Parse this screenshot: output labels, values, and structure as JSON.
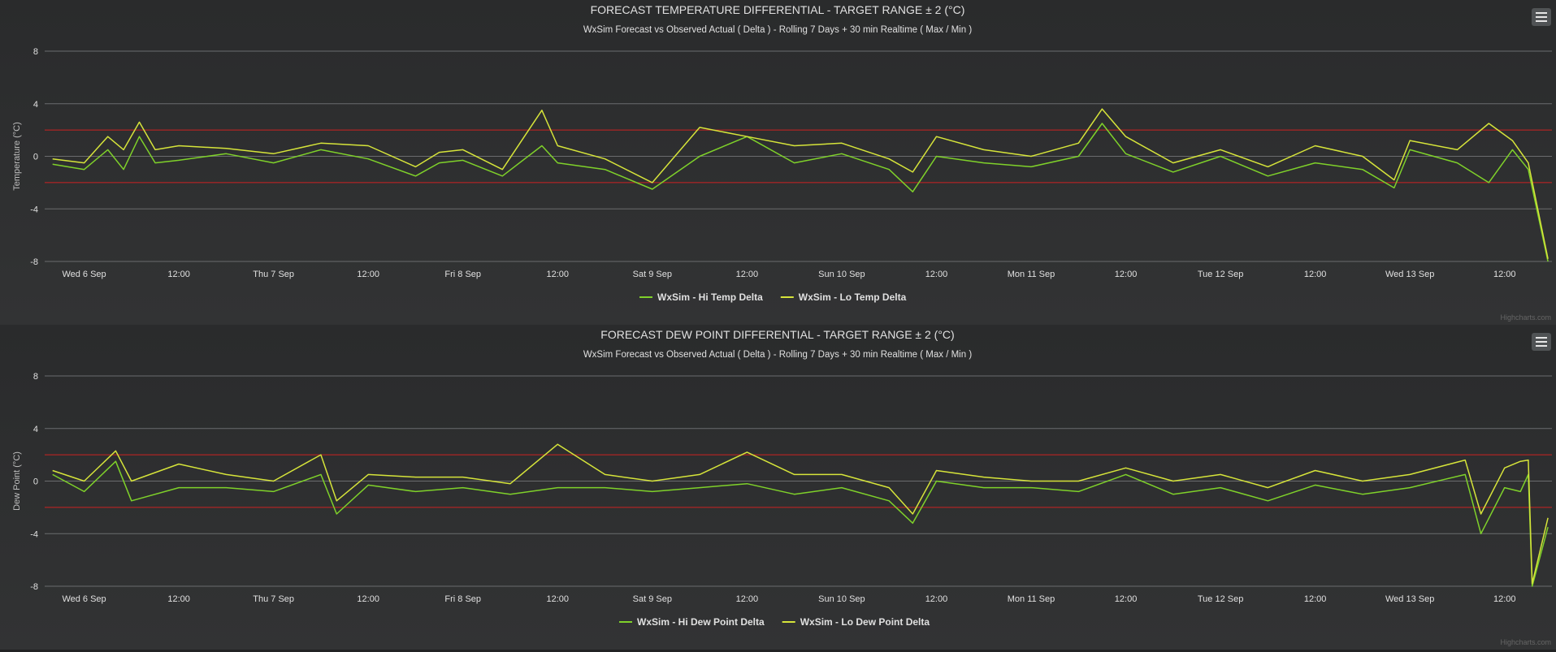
{
  "credit": "Highcharts.com",
  "colors": {
    "hi": "#7fd12a",
    "lo": "#d6e43a",
    "target": "#cc2222",
    "grid": "#6a6c6e",
    "text": "#e0e0e0"
  },
  "chart_data": [
    {
      "type": "line",
      "title": "FORECAST TEMPERATURE DIFFERENTIAL - TARGET RANGE ± 2 (°C)",
      "subtitle": "WxSim Forecast vs Observed Actual ( Delta ) - Rolling 7 Days + 30 min Realtime ( Max / Min )",
      "ylabel": "Temperature (°C)",
      "xlabel": "",
      "ylim": [
        -8,
        8
      ],
      "yticks": [
        "8",
        "4",
        "0",
        "-4",
        "-8"
      ],
      "xlim": [
        "2017-09-05T19:00",
        "2017-09-13T18:00"
      ],
      "xticks": [
        {
          "t": "2017-09-06T00:00",
          "label": "Wed 6 Sep"
        },
        {
          "t": "2017-09-06T12:00",
          "label": "12:00"
        },
        {
          "t": "2017-09-07T00:00",
          "label": "Thu 7 Sep"
        },
        {
          "t": "2017-09-07T12:00",
          "label": "12:00"
        },
        {
          "t": "2017-09-08T00:00",
          "label": "Fri 8 Sep"
        },
        {
          "t": "2017-09-08T12:00",
          "label": "12:00"
        },
        {
          "t": "2017-09-09T00:00",
          "label": "Sat 9 Sep"
        },
        {
          "t": "2017-09-09T12:00",
          "label": "12:00"
        },
        {
          "t": "2017-09-10T00:00",
          "label": "Sun 10 Sep"
        },
        {
          "t": "2017-09-10T12:00",
          "label": "12:00"
        },
        {
          "t": "2017-09-11T00:00",
          "label": "Mon 11 Sep"
        },
        {
          "t": "2017-09-11T12:00",
          "label": "12:00"
        },
        {
          "t": "2017-09-12T00:00",
          "label": "Tue 12 Sep"
        },
        {
          "t": "2017-09-12T12:00",
          "label": "12:00"
        },
        {
          "t": "2017-09-13T00:00",
          "label": "Wed 13 Sep"
        },
        {
          "t": "2017-09-13T12:00",
          "label": "12:00"
        }
      ],
      "target_range": [
        -2,
        2
      ],
      "legend": "bottom-center",
      "grid": true,
      "series": [
        {
          "name": "WxSim - Hi Temp Delta",
          "x": [
            "2017-09-05T20:00",
            "2017-09-06T00:00",
            "2017-09-06T03:00",
            "2017-09-06T05:00",
            "2017-09-06T07:00",
            "2017-09-06T09:00",
            "2017-09-06T12:00",
            "2017-09-06T18:00",
            "2017-09-07T00:00",
            "2017-09-07T06:00",
            "2017-09-07T12:00",
            "2017-09-07T18:00",
            "2017-09-07T21:00",
            "2017-09-08T00:00",
            "2017-09-08T05:00",
            "2017-09-08T10:00",
            "2017-09-08T12:00",
            "2017-09-08T18:00",
            "2017-09-09T00:00",
            "2017-09-09T06:00",
            "2017-09-09T12:00",
            "2017-09-09T18:00",
            "2017-09-10T00:00",
            "2017-09-10T06:00",
            "2017-09-10T09:00",
            "2017-09-10T12:00",
            "2017-09-10T18:00",
            "2017-09-11T00:00",
            "2017-09-11T06:00",
            "2017-09-11T09:00",
            "2017-09-11T12:00",
            "2017-09-11T18:00",
            "2017-09-12T00:00",
            "2017-09-12T06:00",
            "2017-09-12T12:00",
            "2017-09-12T18:00",
            "2017-09-12T22:00",
            "2017-09-13T00:00",
            "2017-09-13T06:00",
            "2017-09-13T10:00",
            "2017-09-13T13:00",
            "2017-09-13T15:00",
            "2017-09-13T17:30"
          ],
          "values": [
            -0.6,
            -1.0,
            0.5,
            -1.0,
            1.5,
            -0.5,
            -0.3,
            0.2,
            -0.5,
            0.5,
            -0.2,
            -1.5,
            -0.5,
            -0.3,
            -1.5,
            0.8,
            -0.5,
            -1.0,
            -2.5,
            0.0,
            1.5,
            -0.5,
            0.2,
            -1.0,
            -2.7,
            0.0,
            -0.5,
            -0.8,
            0.0,
            2.5,
            0.2,
            -1.2,
            0.0,
            -1.5,
            -0.5,
            -1.0,
            -2.4,
            0.5,
            -0.5,
            -2.0,
            0.5,
            -1.0,
            -8.0
          ]
        },
        {
          "name": "WxSim - Lo Temp Delta",
          "x": [
            "2017-09-05T20:00",
            "2017-09-06T00:00",
            "2017-09-06T03:00",
            "2017-09-06T05:00",
            "2017-09-06T07:00",
            "2017-09-06T09:00",
            "2017-09-06T12:00",
            "2017-09-06T18:00",
            "2017-09-07T00:00",
            "2017-09-07T06:00",
            "2017-09-07T12:00",
            "2017-09-07T18:00",
            "2017-09-07T21:00",
            "2017-09-08T00:00",
            "2017-09-08T05:00",
            "2017-09-08T10:00",
            "2017-09-08T12:00",
            "2017-09-08T18:00",
            "2017-09-09T00:00",
            "2017-09-09T06:00",
            "2017-09-09T12:00",
            "2017-09-09T18:00",
            "2017-09-10T00:00",
            "2017-09-10T06:00",
            "2017-09-10T09:00",
            "2017-09-10T12:00",
            "2017-09-10T18:00",
            "2017-09-11T00:00",
            "2017-09-11T06:00",
            "2017-09-11T09:00",
            "2017-09-11T12:00",
            "2017-09-11T18:00",
            "2017-09-12T00:00",
            "2017-09-12T06:00",
            "2017-09-12T12:00",
            "2017-09-12T18:00",
            "2017-09-12T22:00",
            "2017-09-13T00:00",
            "2017-09-13T06:00",
            "2017-09-13T10:00",
            "2017-09-13T13:00",
            "2017-09-13T15:00",
            "2017-09-13T17:30"
          ],
          "values": [
            -0.2,
            -0.5,
            1.5,
            0.5,
            2.6,
            0.5,
            0.8,
            0.6,
            0.2,
            1.0,
            0.8,
            -0.8,
            0.3,
            0.5,
            -1.0,
            3.5,
            0.8,
            -0.2,
            -2.0,
            2.2,
            1.5,
            0.8,
            1.0,
            -0.2,
            -1.2,
            1.5,
            0.5,
            0.0,
            1.0,
            3.6,
            1.5,
            -0.5,
            0.5,
            -0.8,
            0.8,
            0.0,
            -1.8,
            1.2,
            0.5,
            2.5,
            1.2,
            -0.5,
            -7.8
          ]
        }
      ]
    },
    {
      "type": "line",
      "title": "FORECAST DEW POINT DIFFERENTIAL - TARGET RANGE ± 2 (°C)",
      "subtitle": "WxSim Forecast vs Observed Actual ( Delta ) - Rolling 7 Days + 30 min Realtime ( Max / Min )",
      "ylabel": "Dew Point (°C)",
      "xlabel": "",
      "ylim": [
        -8,
        8
      ],
      "yticks": [
        "8",
        "4",
        "0",
        "-4",
        "-8"
      ],
      "xlim": [
        "2017-09-05T19:00",
        "2017-09-13T18:00"
      ],
      "xticks": [
        {
          "t": "2017-09-06T00:00",
          "label": "Wed 6 Sep"
        },
        {
          "t": "2017-09-06T12:00",
          "label": "12:00"
        },
        {
          "t": "2017-09-07T00:00",
          "label": "Thu 7 Sep"
        },
        {
          "t": "2017-09-07T12:00",
          "label": "12:00"
        },
        {
          "t": "2017-09-08T00:00",
          "label": "Fri 8 Sep"
        },
        {
          "t": "2017-09-08T12:00",
          "label": "12:00"
        },
        {
          "t": "2017-09-09T00:00",
          "label": "Sat 9 Sep"
        },
        {
          "t": "2017-09-09T12:00",
          "label": "12:00"
        },
        {
          "t": "2017-09-10T00:00",
          "label": "Sun 10 Sep"
        },
        {
          "t": "2017-09-10T12:00",
          "label": "12:00"
        },
        {
          "t": "2017-09-11T00:00",
          "label": "Mon 11 Sep"
        },
        {
          "t": "2017-09-11T12:00",
          "label": "12:00"
        },
        {
          "t": "2017-09-12T00:00",
          "label": "Tue 12 Sep"
        },
        {
          "t": "2017-09-12T12:00",
          "label": "12:00"
        },
        {
          "t": "2017-09-13T00:00",
          "label": "Wed 13 Sep"
        },
        {
          "t": "2017-09-13T12:00",
          "label": "12:00"
        }
      ],
      "target_range": [
        -2,
        2
      ],
      "legend": "bottom-center",
      "grid": true,
      "series": [
        {
          "name": "WxSim - Hi Dew Point Delta",
          "x": [
            "2017-09-05T20:00",
            "2017-09-06T00:00",
            "2017-09-06T04:00",
            "2017-09-06T06:00",
            "2017-09-06T12:00",
            "2017-09-06T18:00",
            "2017-09-07T00:00",
            "2017-09-07T06:00",
            "2017-09-07T08:00",
            "2017-09-07T12:00",
            "2017-09-07T18:00",
            "2017-09-08T00:00",
            "2017-09-08T06:00",
            "2017-09-08T12:00",
            "2017-09-08T18:00",
            "2017-09-09T00:00",
            "2017-09-09T06:00",
            "2017-09-09T12:00",
            "2017-09-09T18:00",
            "2017-09-10T00:00",
            "2017-09-10T06:00",
            "2017-09-10T09:00",
            "2017-09-10T12:00",
            "2017-09-10T18:00",
            "2017-09-11T00:00",
            "2017-09-11T06:00",
            "2017-09-11T12:00",
            "2017-09-11T18:00",
            "2017-09-12T00:00",
            "2017-09-12T06:00",
            "2017-09-12T12:00",
            "2017-09-12T18:00",
            "2017-09-13T00:00",
            "2017-09-13T07:00",
            "2017-09-13T09:00",
            "2017-09-13T12:00",
            "2017-09-13T14:00",
            "2017-09-13T15:00",
            "2017-09-13T15:30",
            "2017-09-13T17:30"
          ],
          "values": [
            0.5,
            -0.8,
            1.5,
            -1.5,
            -0.5,
            -0.5,
            -0.8,
            0.5,
            -2.5,
            -0.3,
            -0.8,
            -0.5,
            -1.0,
            -0.5,
            -0.5,
            -0.8,
            -0.5,
            -0.2,
            -1.0,
            -0.5,
            -1.5,
            -3.2,
            0.0,
            -0.5,
            -0.5,
            -0.8,
            0.5,
            -1.0,
            -0.5,
            -1.5,
            -0.3,
            -1.0,
            -0.5,
            0.5,
            -4.0,
            -0.5,
            -0.8,
            0.5,
            -8.0,
            -3.5
          ]
        },
        {
          "name": "WxSim - Lo Dew Point Delta",
          "x": [
            "2017-09-05T20:00",
            "2017-09-06T00:00",
            "2017-09-06T04:00",
            "2017-09-06T06:00",
            "2017-09-06T12:00",
            "2017-09-06T18:00",
            "2017-09-07T00:00",
            "2017-09-07T06:00",
            "2017-09-07T08:00",
            "2017-09-07T12:00",
            "2017-09-07T18:00",
            "2017-09-08T00:00",
            "2017-09-08T06:00",
            "2017-09-08T12:00",
            "2017-09-08T18:00",
            "2017-09-09T00:00",
            "2017-09-09T06:00",
            "2017-09-09T12:00",
            "2017-09-09T18:00",
            "2017-09-10T00:00",
            "2017-09-10T06:00",
            "2017-09-10T09:00",
            "2017-09-10T12:00",
            "2017-09-10T18:00",
            "2017-09-11T00:00",
            "2017-09-11T06:00",
            "2017-09-11T12:00",
            "2017-09-11T18:00",
            "2017-09-12T00:00",
            "2017-09-12T06:00",
            "2017-09-12T12:00",
            "2017-09-12T18:00",
            "2017-09-13T00:00",
            "2017-09-13T07:00",
            "2017-09-13T09:00",
            "2017-09-13T12:00",
            "2017-09-13T14:00",
            "2017-09-13T15:00",
            "2017-09-13T15:30",
            "2017-09-13T17:30"
          ],
          "values": [
            0.8,
            0.0,
            2.3,
            0.0,
            1.3,
            0.5,
            0.0,
            2.0,
            -1.5,
            0.5,
            0.3,
            0.3,
            -0.2,
            2.8,
            0.5,
            0.0,
            0.5,
            2.2,
            0.5,
            0.5,
            -0.5,
            -2.5,
            0.8,
            0.3,
            0.0,
            0.0,
            1.0,
            0.0,
            0.5,
            -0.5,
            0.8,
            0.0,
            0.5,
            1.6,
            -2.5,
            1.0,
            1.5,
            1.6,
            -7.8,
            -2.8
          ]
        }
      ]
    }
  ]
}
